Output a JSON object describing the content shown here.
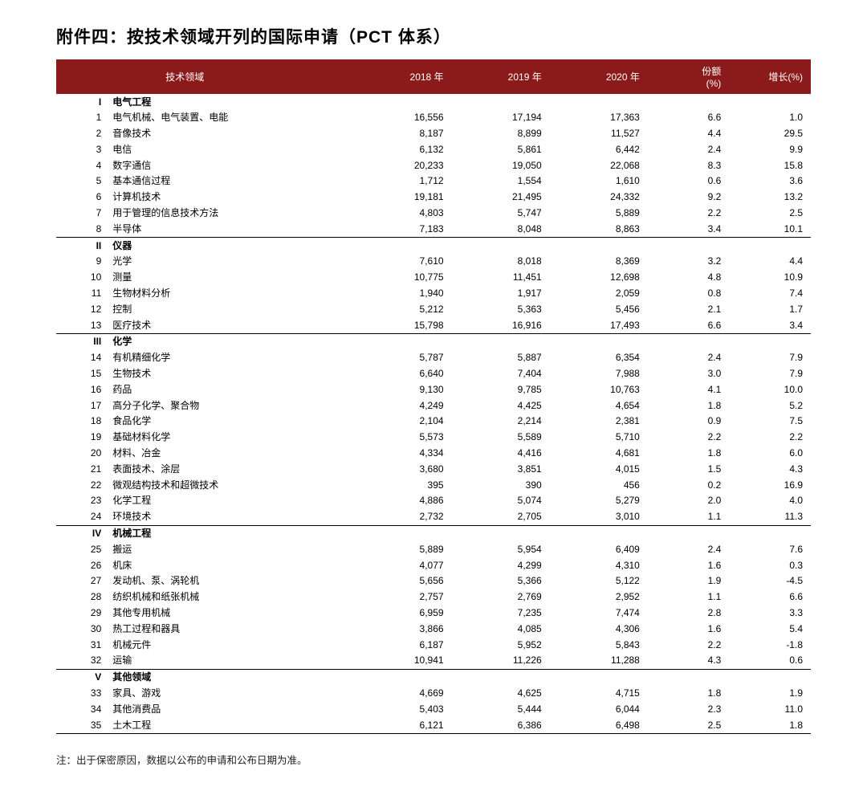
{
  "title": "附件四：按技术领域开列的国际申请（PCT 体系）",
  "columns": {
    "tech": "技术领域",
    "y2018": "2018 年",
    "y2019": "2019 年",
    "y2020": "2020 年",
    "share": "份额\n(%)",
    "growth": "增长(%)"
  },
  "colors": {
    "header_bg": "#8b1a1a",
    "header_fg": "#ffffff",
    "text": "#000000",
    "bg": "#ffffff"
  },
  "fontsize": {
    "title": 21,
    "body": 12,
    "footnote": 12.5
  },
  "sections": [
    {
      "roman": "I",
      "label": "电气工程",
      "rows": [
        {
          "n": 1,
          "name": "电气机械、电气装置、电能",
          "y18": "16,556",
          "y19": "17,194",
          "y20": "17,363",
          "share": "6.6",
          "grow": "1.0"
        },
        {
          "n": 2,
          "name": "音像技术",
          "y18": "8,187",
          "y19": "8,899",
          "y20": "11,527",
          "share": "4.4",
          "grow": "29.5"
        },
        {
          "n": 3,
          "name": "电信",
          "y18": "6,132",
          "y19": "5,861",
          "y20": "6,442",
          "share": "2.4",
          "grow": "9.9"
        },
        {
          "n": 4,
          "name": "数字通信",
          "y18": "20,233",
          "y19": "19,050",
          "y20": "22,068",
          "share": "8.3",
          "grow": "15.8"
        },
        {
          "n": 5,
          "name": "基本通信过程",
          "y18": "1,712",
          "y19": "1,554",
          "y20": "1,610",
          "share": "0.6",
          "grow": "3.6"
        },
        {
          "n": 6,
          "name": "计算机技术",
          "y18": "19,181",
          "y19": "21,495",
          "y20": "24,332",
          "share": "9.2",
          "grow": "13.2"
        },
        {
          "n": 7,
          "name": "用于管理的信息技术方法",
          "y18": "4,803",
          "y19": "5,747",
          "y20": "5,889",
          "share": "2.2",
          "grow": "2.5"
        },
        {
          "n": 8,
          "name": "半导体",
          "y18": "7,183",
          "y19": "8,048",
          "y20": "8,863",
          "share": "3.4",
          "grow": "10.1"
        }
      ]
    },
    {
      "roman": "II",
      "label": "仪器",
      "rows": [
        {
          "n": 9,
          "name": "光学",
          "y18": "7,610",
          "y19": "8,018",
          "y20": "8,369",
          "share": "3.2",
          "grow": "4.4"
        },
        {
          "n": 10,
          "name": "测量",
          "y18": "10,775",
          "y19": "11,451",
          "y20": "12,698",
          "share": "4.8",
          "grow": "10.9"
        },
        {
          "n": 11,
          "name": "生物材料分析",
          "y18": "1,940",
          "y19": "1,917",
          "y20": "2,059",
          "share": "0.8",
          "grow": "7.4"
        },
        {
          "n": 12,
          "name": "控制",
          "y18": "5,212",
          "y19": "5,363",
          "y20": "5,456",
          "share": "2.1",
          "grow": "1.7"
        },
        {
          "n": 13,
          "name": "医疗技术",
          "y18": "15,798",
          "y19": "16,916",
          "y20": "17,493",
          "share": "6.6",
          "grow": "3.4"
        }
      ]
    },
    {
      "roman": "III",
      "label": "化学",
      "rows": [
        {
          "n": 14,
          "name": "有机精细化学",
          "y18": "5,787",
          "y19": "5,887",
          "y20": "6,354",
          "share": "2.4",
          "grow": "7.9"
        },
        {
          "n": 15,
          "name": "生物技术",
          "y18": "6,640",
          "y19": "7,404",
          "y20": "7,988",
          "share": "3.0",
          "grow": "7.9"
        },
        {
          "n": 16,
          "name": "药品",
          "y18": "9,130",
          "y19": "9,785",
          "y20": "10,763",
          "share": "4.1",
          "grow": "10.0"
        },
        {
          "n": 17,
          "name": "高分子化学、聚合物",
          "y18": "4,249",
          "y19": "4,425",
          "y20": "4,654",
          "share": "1.8",
          "grow": "5.2"
        },
        {
          "n": 18,
          "name": "食品化学",
          "y18": "2,104",
          "y19": "2,214",
          "y20": "2,381",
          "share": "0.9",
          "grow": "7.5"
        },
        {
          "n": 19,
          "name": "基础材料化学",
          "y18": "5,573",
          "y19": "5,589",
          "y20": "5,710",
          "share": "2.2",
          "grow": "2.2"
        },
        {
          "n": 20,
          "name": "材料、冶金",
          "y18": "4,334",
          "y19": "4,416",
          "y20": "4,681",
          "share": "1.8",
          "grow": "6.0"
        },
        {
          "n": 21,
          "name": "表面技术、涂层",
          "y18": "3,680",
          "y19": "3,851",
          "y20": "4,015",
          "share": "1.5",
          "grow": "4.3"
        },
        {
          "n": 22,
          "name": "微观结构技术和超微技术",
          "y18": "395",
          "y19": "390",
          "y20": "456",
          "share": "0.2",
          "grow": "16.9"
        },
        {
          "n": 23,
          "name": "化学工程",
          "y18": "4,886",
          "y19": "5,074",
          "y20": "5,279",
          "share": "2.0",
          "grow": "4.0"
        },
        {
          "n": 24,
          "name": "环境技术",
          "y18": "2,732",
          "y19": "2,705",
          "y20": "3,010",
          "share": "1.1",
          "grow": "11.3"
        }
      ]
    },
    {
      "roman": "IV",
      "label": "机械工程",
      "rows": [
        {
          "n": 25,
          "name": "搬运",
          "y18": "5,889",
          "y19": "5,954",
          "y20": "6,409",
          "share": "2.4",
          "grow": "7.6"
        },
        {
          "n": 26,
          "name": "机床",
          "y18": "4,077",
          "y19": "4,299",
          "y20": "4,310",
          "share": "1.6",
          "grow": "0.3"
        },
        {
          "n": 27,
          "name": "发动机、泵、涡轮机",
          "y18": "5,656",
          "y19": "5,366",
          "y20": "5,122",
          "share": "1.9",
          "grow": "-4.5"
        },
        {
          "n": 28,
          "name": "纺织机械和纸张机械",
          "y18": "2,757",
          "y19": "2,769",
          "y20": "2,952",
          "share": "1.1",
          "grow": "6.6"
        },
        {
          "n": 29,
          "name": "其他专用机械",
          "y18": "6,959",
          "y19": "7,235",
          "y20": "7,474",
          "share": "2.8",
          "grow": "3.3"
        },
        {
          "n": 30,
          "name": "热工过程和器具",
          "y18": "3,866",
          "y19": "4,085",
          "y20": "4,306",
          "share": "1.6",
          "grow": "5.4"
        },
        {
          "n": 31,
          "name": "机械元件",
          "y18": "6,187",
          "y19": "5,952",
          "y20": "5,843",
          "share": "2.2",
          "grow": "-1.8"
        },
        {
          "n": 32,
          "name": "运输",
          "y18": "10,941",
          "y19": "11,226",
          "y20": "11,288",
          "share": "4.3",
          "grow": "0.6"
        }
      ]
    },
    {
      "roman": "V",
      "label": "其他领域",
      "rows": [
        {
          "n": 33,
          "name": "家具、游戏",
          "y18": "4,669",
          "y19": "4,625",
          "y20": "4,715",
          "share": "1.8",
          "grow": "1.9"
        },
        {
          "n": 34,
          "name": "其他消费品",
          "y18": "5,403",
          "y19": "5,444",
          "y20": "6,044",
          "share": "2.3",
          "grow": "11.0"
        },
        {
          "n": 35,
          "name": "土木工程",
          "y18": "6,121",
          "y19": "6,386",
          "y20": "6,498",
          "share": "2.5",
          "grow": "1.8"
        }
      ]
    }
  ],
  "footnote": "注：出于保密原因，数据以公布的申请和公布日期为准。"
}
